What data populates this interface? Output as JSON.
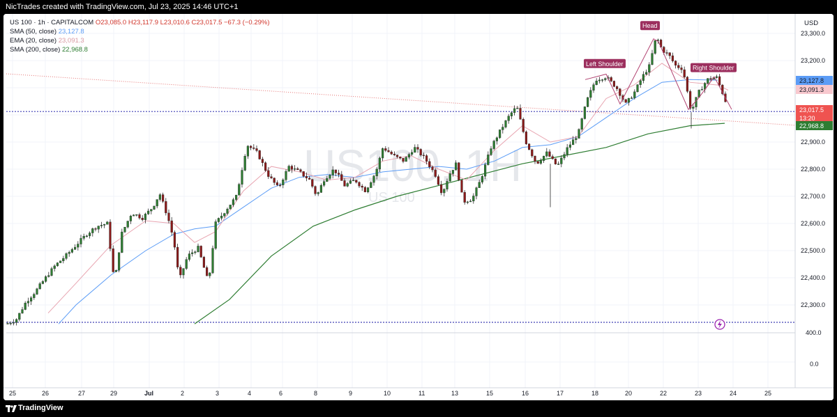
{
  "header": {
    "credit": "NicTrades created with TradingView.com, Jul 23, 2025 14:46 UTC+1"
  },
  "legend": {
    "symbol": "US 100 · 1h · CAPITALCOM",
    "ohlc": "O23,085.0  H23,117.9  L23,010.6  C23,017.5  −67.3 (−0.29%)",
    "sma50_label": "SMA (50, close)",
    "sma50_value": "23,127.8",
    "ema20_label": "EMA (20, close)",
    "ema20_value": "23,091.3",
    "sma200_label": "SMA (200, close)",
    "sma200_value": "22,968.8"
  },
  "footer": {
    "brand": "TradingView"
  },
  "chart_data": {
    "type": "candlestick",
    "symbol": "US 100",
    "interval": "1h",
    "exchange": "CAPITALCOM",
    "watermark": "US100, 1H",
    "watermark_sub": "US 100",
    "currency": "USD",
    "y_ticks": [
      "23,300.0",
      "23,200.0",
      "22,900.0",
      "22,800.0",
      "22,700.0",
      "22,600.0",
      "22,500.0",
      "22,400.0",
      "22,300.0"
    ],
    "y_ticks_lower": [
      "400.0",
      "0.0"
    ],
    "x_ticks": [
      "25",
      "26",
      "27",
      "29",
      "Jul",
      "2",
      "3",
      "4",
      "6",
      "8",
      "9",
      "10",
      "11",
      "13",
      "15",
      "16",
      "17",
      "18",
      "20",
      "22",
      "23",
      "24",
      "25"
    ],
    "price_labels": [
      {
        "value": "23,127.8",
        "color": "#5b9cf6",
        "series": "SMA 50"
      },
      {
        "value": "23,091.3",
        "color": "#f3c4c9",
        "series": "EMA 20"
      },
      {
        "value": "23,017.5",
        "color": "#ef5350",
        "series": "Last"
      },
      {
        "value": "13:20",
        "color": "#ef5350",
        "series": "Countdown"
      },
      {
        "value": "22,968.8",
        "color": "#2e7d32",
        "series": "SMA 200"
      }
    ],
    "annotations": [
      "Left Shoulder",
      "Head",
      "Right Shoulder"
    ],
    "annotation_color": "#9c2f5e",
    "horizontal_levels": [
      23017.5,
      22250
    ],
    "colors": {
      "up": "#26a69a",
      "down": "#ef5350",
      "candle_body_up": "#2e7d32",
      "candle_body_down": "#8b1a1a",
      "sma50": "#5b9cf6",
      "ema20": "#e8a4b0",
      "sma200": "#2e7d32"
    },
    "ohlc_path": [
      [
        0,
        22230
      ],
      [
        14,
        22245
      ],
      [
        28,
        22310
      ],
      [
        42,
        22350
      ],
      [
        55,
        22395
      ],
      [
        70,
        22445
      ],
      [
        85,
        22480
      ],
      [
        100,
        22520
      ],
      [
        115,
        22560
      ],
      [
        130,
        22590
      ],
      [
        145,
        22600
      ],
      [
        155,
        22380
      ],
      [
        165,
        22560
      ],
      [
        180,
        22640
      ],
      [
        195,
        22620
      ],
      [
        210,
        22660
      ],
      [
        220,
        22710
      ],
      [
        232,
        22620
      ],
      [
        240,
        22540
      ],
      [
        248,
        22390
      ],
      [
        260,
        22480
      ],
      [
        275,
        22510
      ],
      [
        290,
        22380
      ],
      [
        300,
        22600
      ],
      [
        315,
        22650
      ],
      [
        330,
        22700
      ],
      [
        345,
        22890
      ],
      [
        360,
        22860
      ],
      [
        375,
        22780
      ],
      [
        390,
        22730
      ],
      [
        405,
        22810
      ],
      [
        420,
        22790
      ],
      [
        435,
        22760
      ],
      [
        445,
        22700
      ],
      [
        455,
        22760
      ],
      [
        470,
        22800
      ],
      [
        485,
        22740
      ],
      [
        500,
        22760
      ],
      [
        515,
        22720
      ],
      [
        530,
        22790
      ],
      [
        540,
        22880
      ],
      [
        555,
        22850
      ],
      [
        570,
        22830
      ],
      [
        585,
        22880
      ],
      [
        600,
        22840
      ],
      [
        615,
        22780
      ],
      [
        625,
        22710
      ],
      [
        635,
        22780
      ],
      [
        645,
        22820
      ],
      [
        655,
        22680
      ],
      [
        668,
        22690
      ],
      [
        680,
        22760
      ],
      [
        695,
        22880
      ],
      [
        710,
        22950
      ],
      [
        722,
        23000
      ],
      [
        732,
        23030
      ],
      [
        745,
        22900
      ],
      [
        760,
        22820
      ],
      [
        775,
        22860
      ],
      [
        790,
        22810
      ],
      [
        805,
        22880
      ],
      [
        820,
        22930
      ],
      [
        832,
        23050
      ],
      [
        845,
        23130
      ],
      [
        860,
        23140
      ],
      [
        875,
        23100
      ],
      [
        888,
        23040
      ],
      [
        900,
        23080
      ],
      [
        912,
        23140
      ],
      [
        922,
        23180
      ],
      [
        932,
        23290
      ],
      [
        940,
        23240
      ],
      [
        950,
        23220
      ],
      [
        960,
        23180
      ],
      [
        970,
        23170
      ],
      [
        982,
        23010
      ],
      [
        992,
        23080
      ],
      [
        1005,
        23130
      ],
      [
        1018,
        23140
      ],
      [
        1030,
        23060
      ],
      [
        1035,
        23017.5
      ]
    ],
    "sma50_path": [
      [
        75,
        22230
      ],
      [
        100,
        22300
      ],
      [
        150,
        22410
      ],
      [
        200,
        22500
      ],
      [
        240,
        22560
      ],
      [
        270,
        22580
      ],
      [
        300,
        22590
      ],
      [
        340,
        22660
      ],
      [
        380,
        22730
      ],
      [
        420,
        22770
      ],
      [
        460,
        22780
      ],
      [
        500,
        22770
      ],
      [
        540,
        22790
      ],
      [
        580,
        22800
      ],
      [
        620,
        22810
      ],
      [
        660,
        22800
      ],
      [
        700,
        22830
      ],
      [
        740,
        22880
      ],
      [
        780,
        22890
      ],
      [
        820,
        22920
      ],
      [
        860,
        22990
      ],
      [
        900,
        23060
      ],
      [
        940,
        23120
      ],
      [
        980,
        23130
      ],
      [
        1020,
        23128
      ]
    ],
    "ema20_path": [
      [
        60,
        22270
      ],
      [
        100,
        22380
      ],
      [
        150,
        22520
      ],
      [
        200,
        22610
      ],
      [
        240,
        22600
      ],
      [
        270,
        22530
      ],
      [
        300,
        22570
      ],
      [
        340,
        22720
      ],
      [
        380,
        22810
      ],
      [
        420,
        22790
      ],
      [
        460,
        22760
      ],
      [
        500,
        22770
      ],
      [
        540,
        22830
      ],
      [
        580,
        22850
      ],
      [
        620,
        22800
      ],
      [
        660,
        22760
      ],
      [
        700,
        22870
      ],
      [
        740,
        22960
      ],
      [
        780,
        22900
      ],
      [
        820,
        22920
      ],
      [
        860,
        23060
      ],
      [
        900,
        23110
      ],
      [
        940,
        23190
      ],
      [
        980,
        23120
      ],
      [
        1020,
        23110
      ],
      [
        1035,
        23091
      ]
    ],
    "sma200_path": [
      [
        270,
        22230
      ],
      [
        320,
        22320
      ],
      [
        380,
        22480
      ],
      [
        440,
        22590
      ],
      [
        500,
        22650
      ],
      [
        560,
        22700
      ],
      [
        620,
        22740
      ],
      [
        680,
        22780
      ],
      [
        740,
        22820
      ],
      [
        800,
        22850
      ],
      [
        860,
        22880
      ],
      [
        920,
        22930
      ],
      [
        980,
        22960
      ],
      [
        1030,
        22969
      ]
    ]
  }
}
